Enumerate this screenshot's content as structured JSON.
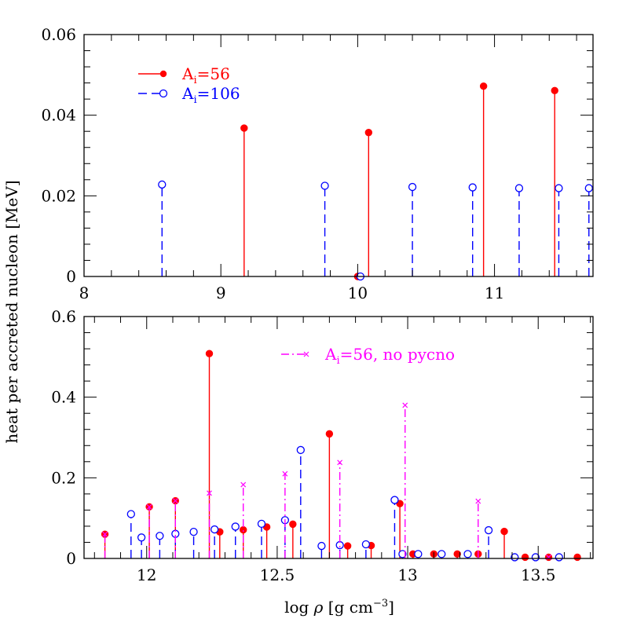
{
  "ylabel": "heat per accreted nucleon [MeV]",
  "xlabel_text": "log ",
  "xlabel_rho": "ρ",
  "xlabel_units": " [g cm",
  "xlabel_exp": "−3",
  "xlabel_close": "]",
  "colors": {
    "red": "#ff0000",
    "blue": "#0000ff",
    "magenta": "#ff00ff",
    "axis": "#000000"
  },
  "chart_data": [
    {
      "type": "scatter",
      "subtype": "stem",
      "xlim": [
        8,
        11.72
      ],
      "ylim": [
        0,
        0.06
      ],
      "x_ticks": [
        "8",
        "9",
        "10",
        "11"
      ],
      "y_ticks": [
        "0",
        "0.02",
        "0.04",
        "0.06"
      ],
      "legend_placement": "top-left",
      "legend": [
        {
          "series": "Ai56",
          "base": "A",
          "sub": "i",
          "value": "=56"
        },
        {
          "series": "Ai106",
          "base": "A",
          "sub": "i",
          "value": "=106"
        }
      ],
      "series": [
        {
          "id": "Ai56",
          "color": "#ff0000",
          "style": "solid",
          "marker": "filled-circle",
          "points": [
            [
              9.17,
              0.0368
            ],
            [
              10.0,
              0.0
            ],
            [
              10.08,
              0.0357
            ],
            [
              10.92,
              0.0472
            ],
            [
              11.44,
              0.0461
            ]
          ]
        },
        {
          "id": "Ai106",
          "color": "#0000ff",
          "style": "dashed",
          "marker": "open-circle",
          "points": [
            [
              8.57,
              0.0228
            ],
            [
              9.76,
              0.0225
            ],
            [
              10.02,
              0.0
            ],
            [
              10.4,
              0.0222
            ],
            [
              10.84,
              0.0221
            ],
            [
              11.18,
              0.0219
            ],
            [
              11.47,
              0.0219
            ],
            [
              11.69,
              0.0219
            ]
          ]
        }
      ]
    },
    {
      "type": "scatter",
      "subtype": "stem",
      "xlim": [
        11.76,
        13.71
      ],
      "ylim": [
        0,
        0.6
      ],
      "x_ticks": [
        "12",
        "12.5",
        "13",
        "13.5"
      ],
      "y_ticks": [
        "0",
        "0.2",
        "0.4",
        "0.6"
      ],
      "legend_placement": "top-right",
      "legend": [
        {
          "series": "Ai56np",
          "base": "A",
          "sub": "i",
          "value": "=56, no pycno"
        }
      ],
      "series": [
        {
          "id": "Ai56",
          "color": "#ff0000",
          "style": "solid",
          "marker": "filled-circle",
          "points": [
            [
              11.84,
              0.06
            ],
            [
              12.01,
              0.128
            ],
            [
              12.11,
              0.143
            ],
            [
              12.24,
              0.508
            ],
            [
              12.28,
              0.066
            ],
            [
              12.37,
              0.071
            ],
            [
              12.46,
              0.078
            ],
            [
              12.56,
              0.085
            ],
            [
              12.7,
              0.309
            ],
            [
              12.77,
              0.031
            ],
            [
              12.86,
              0.032
            ],
            [
              12.97,
              0.136
            ],
            [
              13.02,
              0.011
            ],
            [
              13.1,
              0.011
            ],
            [
              13.19,
              0.011
            ],
            [
              13.27,
              0.011
            ],
            [
              13.37,
              0.067
            ],
            [
              13.45,
              0.003
            ],
            [
              13.54,
              0.003
            ],
            [
              13.65,
              0.003
            ]
          ]
        },
        {
          "id": "Ai106",
          "color": "#0000ff",
          "style": "dashed",
          "marker": "open-circle",
          "points": [
            [
              11.94,
              0.11
            ],
            [
              11.98,
              0.052
            ],
            [
              12.05,
              0.056
            ],
            [
              12.11,
              0.061
            ],
            [
              12.18,
              0.066
            ],
            [
              12.26,
              0.072
            ],
            [
              12.34,
              0.079
            ],
            [
              12.44,
              0.086
            ],
            [
              12.53,
              0.095
            ],
            [
              12.59,
              0.269
            ],
            [
              12.67,
              0.031
            ],
            [
              12.74,
              0.033
            ],
            [
              12.84,
              0.035
            ],
            [
              12.95,
              0.145
            ],
            [
              12.98,
              0.011
            ],
            [
              13.04,
              0.011
            ],
            [
              13.13,
              0.011
            ],
            [
              13.23,
              0.011
            ],
            [
              13.31,
              0.07
            ],
            [
              13.41,
              0.003
            ],
            [
              13.49,
              0.003
            ],
            [
              13.58,
              0.003
            ]
          ]
        },
        {
          "id": "Ai56np",
          "color": "#ff00ff",
          "style": "dashdot",
          "marker": "x",
          "points": [
            [
              11.84,
              0.06
            ],
            [
              12.01,
              0.128
            ],
            [
              12.11,
              0.143
            ],
            [
              12.24,
              0.162
            ],
            [
              12.37,
              0.183
            ],
            [
              12.53,
              0.21
            ],
            [
              12.74,
              0.238
            ],
            [
              12.99,
              0.38
            ],
            [
              13.27,
              0.142
            ],
            [
              13.54,
              0.003
            ]
          ]
        }
      ]
    }
  ]
}
